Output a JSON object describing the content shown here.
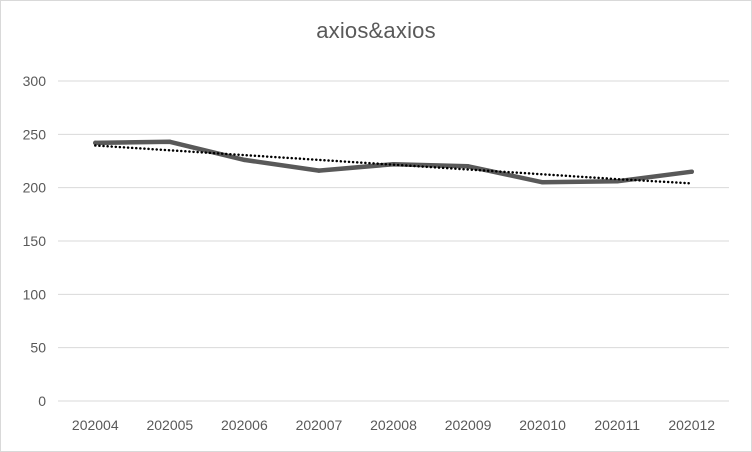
{
  "chart_data": {
    "type": "line",
    "title": "axios&axios",
    "categories": [
      "202004",
      "202005",
      "202006",
      "202007",
      "202008",
      "202009",
      "202010",
      "202011",
      "202012"
    ],
    "series": [
      {
        "values": [
          242,
          243,
          226,
          216,
          222,
          220,
          205,
          206,
          215
        ],
        "color": "#595959",
        "style": "solid"
      },
      {
        "values": [
          239.5,
          235,
          230.5,
          226,
          221.5,
          217,
          212.5,
          208,
          204
        ],
        "color": "#000000",
        "style": "dotted",
        "kind": "trendline"
      }
    ],
    "yticks": [
      0,
      50,
      100,
      150,
      200,
      250,
      300
    ],
    "ylim": [
      0,
      300
    ],
    "grid": "horizontal",
    "legend": "none"
  }
}
